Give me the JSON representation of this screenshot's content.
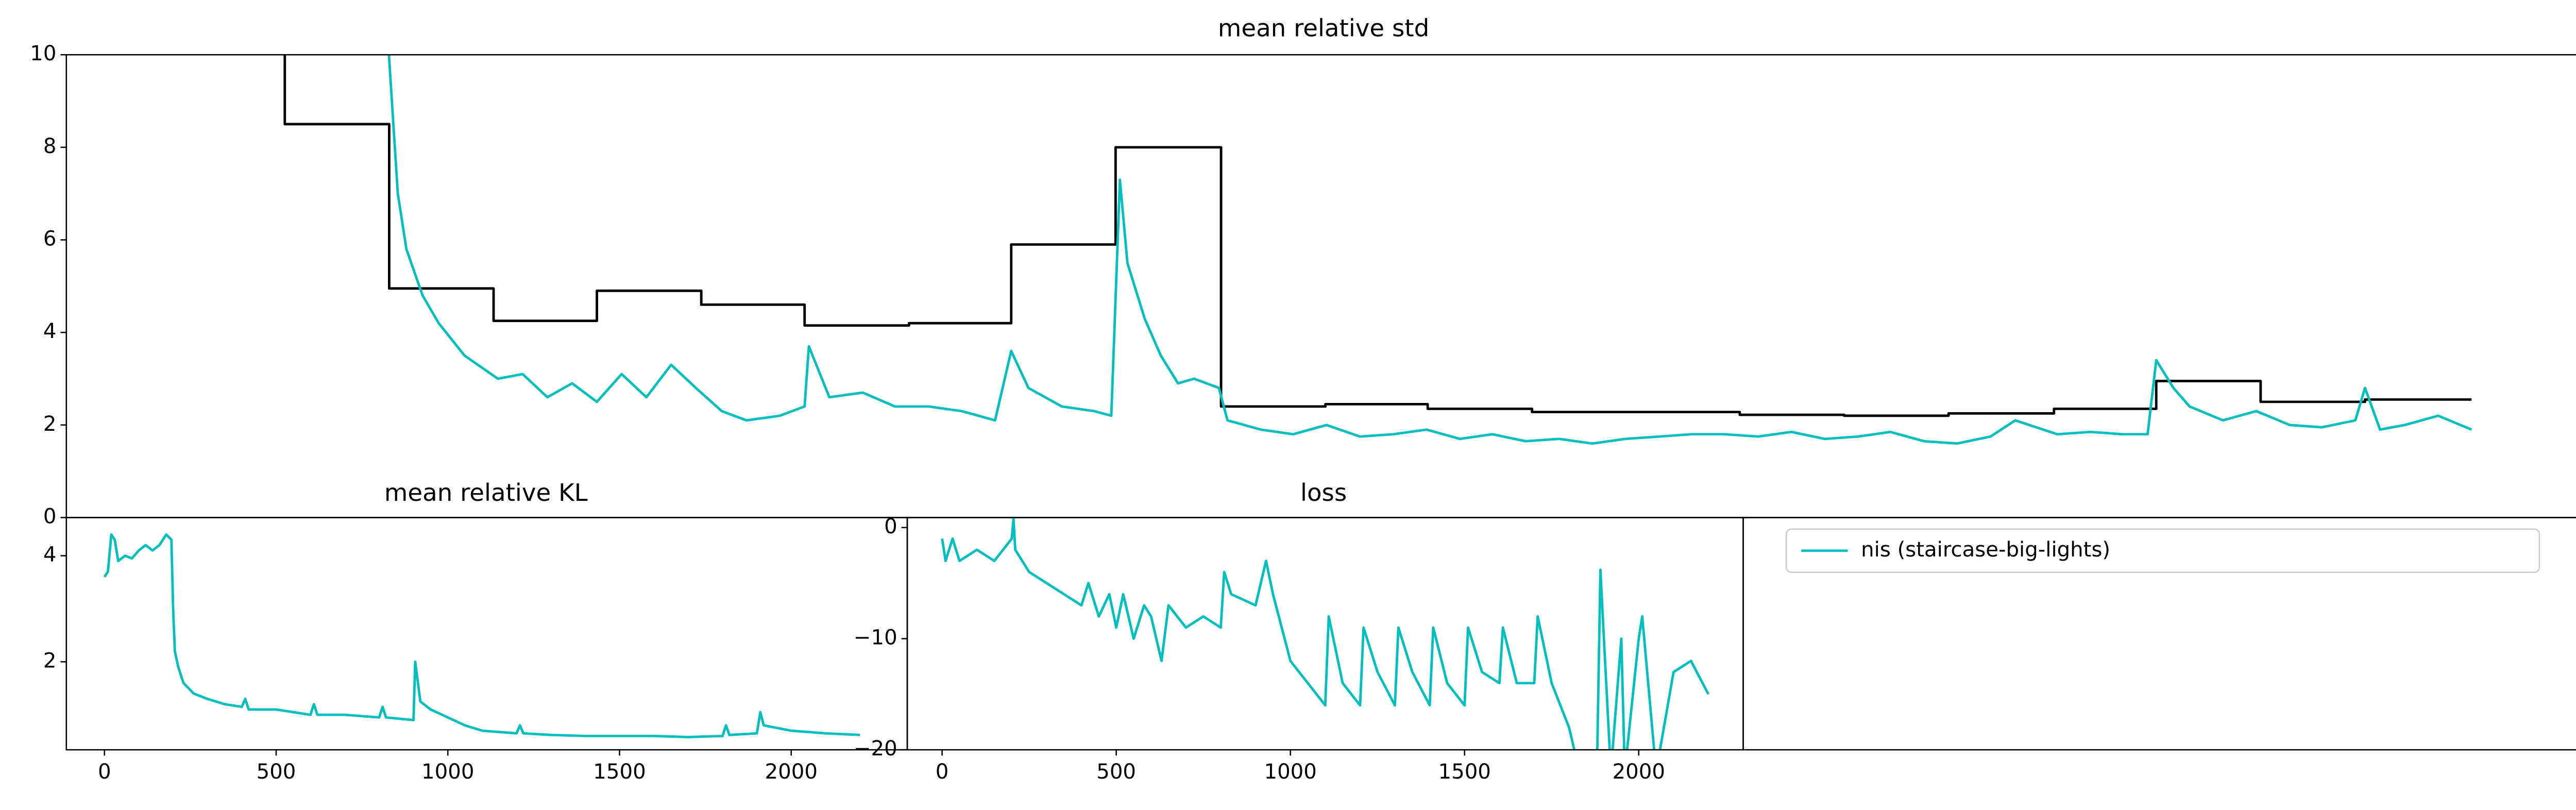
{
  "chart_data": [
    {
      "type": "line",
      "title": "mean relative std",
      "xlim": [
        -35,
        2300
      ],
      "ylim": [
        0,
        10
      ],
      "yticks": [
        0,
        2,
        4,
        6,
        8,
        10
      ],
      "series": [
        {
          "color": "#000000",
          "drawstyle": "steps-post",
          "x": [
            0,
            168,
            265,
            362,
            458,
            555,
            651,
            748,
            843,
            940,
            1038,
            1135,
            1230,
            1327,
            1520,
            1617,
            1714,
            1812,
            1907,
            2004,
            2101,
            2200
          ],
          "values": [
            12,
            8.5,
            4.95,
            4.25,
            4.9,
            4.6,
            4.15,
            4.2,
            5.9,
            8.0,
            2.4,
            2.45,
            2.35,
            2.28,
            2.22,
            2.2,
            2.25,
            2.35,
            2.95,
            2.5,
            2.55,
            2.55
          ]
        },
        {
          "name": "nis (staircase-big-lights)",
          "color": "#00bfbf",
          "x": [
            262,
            273,
            281,
            296,
            311,
            335,
            366,
            389,
            412,
            435,
            458,
            481,
            504,
            527,
            550,
            574,
            597,
            628,
            651,
            655,
            674,
            705,
            735,
            766,
            797,
            828,
            843,
            859,
            890,
            920,
            936,
            944,
            951,
            967,
            982,
            998,
            1013,
            1036,
            1044,
            1075,
            1105,
            1136,
            1167,
            1198,
            1229,
            1260,
            1290,
            1321,
            1352,
            1383,
            1414,
            1445,
            1475,
            1506,
            1537,
            1568,
            1599,
            1630,
            1660,
            1691,
            1722,
            1753,
            1776,
            1815,
            1846,
            1876,
            1899,
            1907,
            1923,
            1938,
            1969,
            2000,
            2031,
            2061,
            2092,
            2101,
            2115,
            2138,
            2169,
            2200
          ],
          "values": [
            11,
            7,
            5.8,
            4.8,
            4.2,
            3.5,
            3.0,
            3.1,
            2.6,
            2.9,
            2.5,
            3.1,
            2.6,
            3.3,
            2.8,
            2.3,
            2.1,
            2.2,
            2.4,
            3.7,
            2.6,
            2.7,
            2.4,
            2.4,
            2.3,
            2.1,
            3.6,
            2.8,
            2.4,
            2.3,
            2.2,
            7.3,
            5.5,
            4.3,
            3.5,
            2.9,
            3.0,
            2.8,
            2.1,
            1.9,
            1.8,
            2.0,
            1.75,
            1.8,
            1.9,
            1.7,
            1.8,
            1.65,
            1.7,
            1.6,
            1.7,
            1.75,
            1.8,
            1.8,
            1.75,
            1.85,
            1.7,
            1.75,
            1.85,
            1.65,
            1.6,
            1.75,
            2.1,
            1.8,
            1.85,
            1.8,
            1.8,
            3.4,
            2.8,
            2.4,
            2.1,
            2.3,
            2.0,
            1.95,
            2.1,
            2.8,
            1.9,
            2.0,
            2.2,
            1.9
          ]
        }
      ]
    },
    {
      "type": "line",
      "title": "mean relative KL",
      "xlim": [
        -111,
        2338
      ],
      "ylim": [
        0.34,
        4.72
      ],
      "xticks": [
        0,
        500,
        1000,
        1500,
        2000
      ],
      "yticks": [
        2,
        4
      ],
      "series": [
        {
          "color": "#00bfbf",
          "x": [
            0,
            10,
            20,
            30,
            40,
            60,
            80,
            100,
            120,
            140,
            160,
            180,
            195,
            200,
            205,
            215,
            230,
            260,
            300,
            350,
            400,
            410,
            420,
            500,
            550,
            600,
            610,
            620,
            700,
            800,
            810,
            820,
            900,
            905,
            920,
            950,
            1000,
            1050,
            1100,
            1200,
            1210,
            1220,
            1300,
            1400,
            1500,
            1600,
            1700,
            1800,
            1810,
            1820,
            1900,
            1910,
            1920,
            2000,
            2100,
            2200
          ],
          "values": [
            3.6,
            3.7,
            4.4,
            4.3,
            3.9,
            4.0,
            3.95,
            4.1,
            4.2,
            4.1,
            4.2,
            4.4,
            4.3,
            3.0,
            2.2,
            1.9,
            1.6,
            1.4,
            1.3,
            1.2,
            1.15,
            1.3,
            1.1,
            1.1,
            1.05,
            1.0,
            1.2,
            1.0,
            1.0,
            0.95,
            1.15,
            0.95,
            0.9,
            2.0,
            1.25,
            1.1,
            0.95,
            0.8,
            0.7,
            0.65,
            0.8,
            0.65,
            0.62,
            0.6,
            0.6,
            0.6,
            0.58,
            0.6,
            0.8,
            0.62,
            0.65,
            1.05,
            0.8,
            0.7,
            0.65,
            0.62
          ]
        }
      ]
    },
    {
      "type": "line",
      "title": "loss",
      "xlim": [
        -100,
        2300
      ],
      "ylim": [
        -20,
        0.9
      ],
      "xticks": [
        0,
        500,
        1000,
        1500,
        2000
      ],
      "yticks": [
        0,
        {
          "value": -10,
          "label": "−10"
        },
        {
          "value": -20,
          "label": "−20"
        }
      ],
      "series": [
        {
          "color": "#00bfbf",
          "x": [
            0,
            10,
            30,
            50,
            100,
            150,
            200,
            205,
            210,
            250,
            300,
            350,
            400,
            420,
            450,
            480,
            500,
            520,
            550,
            580,
            600,
            630,
            650,
            700,
            750,
            800,
            810,
            830,
            900,
            930,
            950,
            1000,
            1050,
            1100,
            1110,
            1150,
            1200,
            1210,
            1250,
            1300,
            1310,
            1350,
            1400,
            1410,
            1450,
            1500,
            1510,
            1550,
            1600,
            1610,
            1650,
            1700,
            1710,
            1750,
            1800,
            1830,
            1880,
            1890,
            1900,
            1920,
            1950,
            1960,
            2000,
            2010,
            2050,
            2100,
            2150,
            2200
          ],
          "values": [
            -1,
            -3,
            -1,
            -3,
            -2,
            -3,
            -1,
            0.8,
            -2,
            -4,
            -5,
            -6,
            -7,
            -5,
            -8,
            -6,
            -9,
            -6,
            -10,
            -7,
            -8,
            -12,
            -7,
            -9,
            -8,
            -9,
            -4,
            -6,
            -7,
            -3,
            -6,
            -12,
            -14,
            -16,
            -8,
            -14,
            -16,
            -9,
            -13,
            -16,
            -9,
            -13,
            -16,
            -9,
            -14,
            -16,
            -9,
            -13,
            -14,
            -9,
            -14,
            -14,
            -8,
            -14,
            -18,
            -22,
            -22,
            -3.8,
            -10,
            -22,
            -10,
            -22,
            -10,
            -8,
            -22,
            -13,
            -12,
            -15
          ]
        }
      ]
    }
  ]
}
